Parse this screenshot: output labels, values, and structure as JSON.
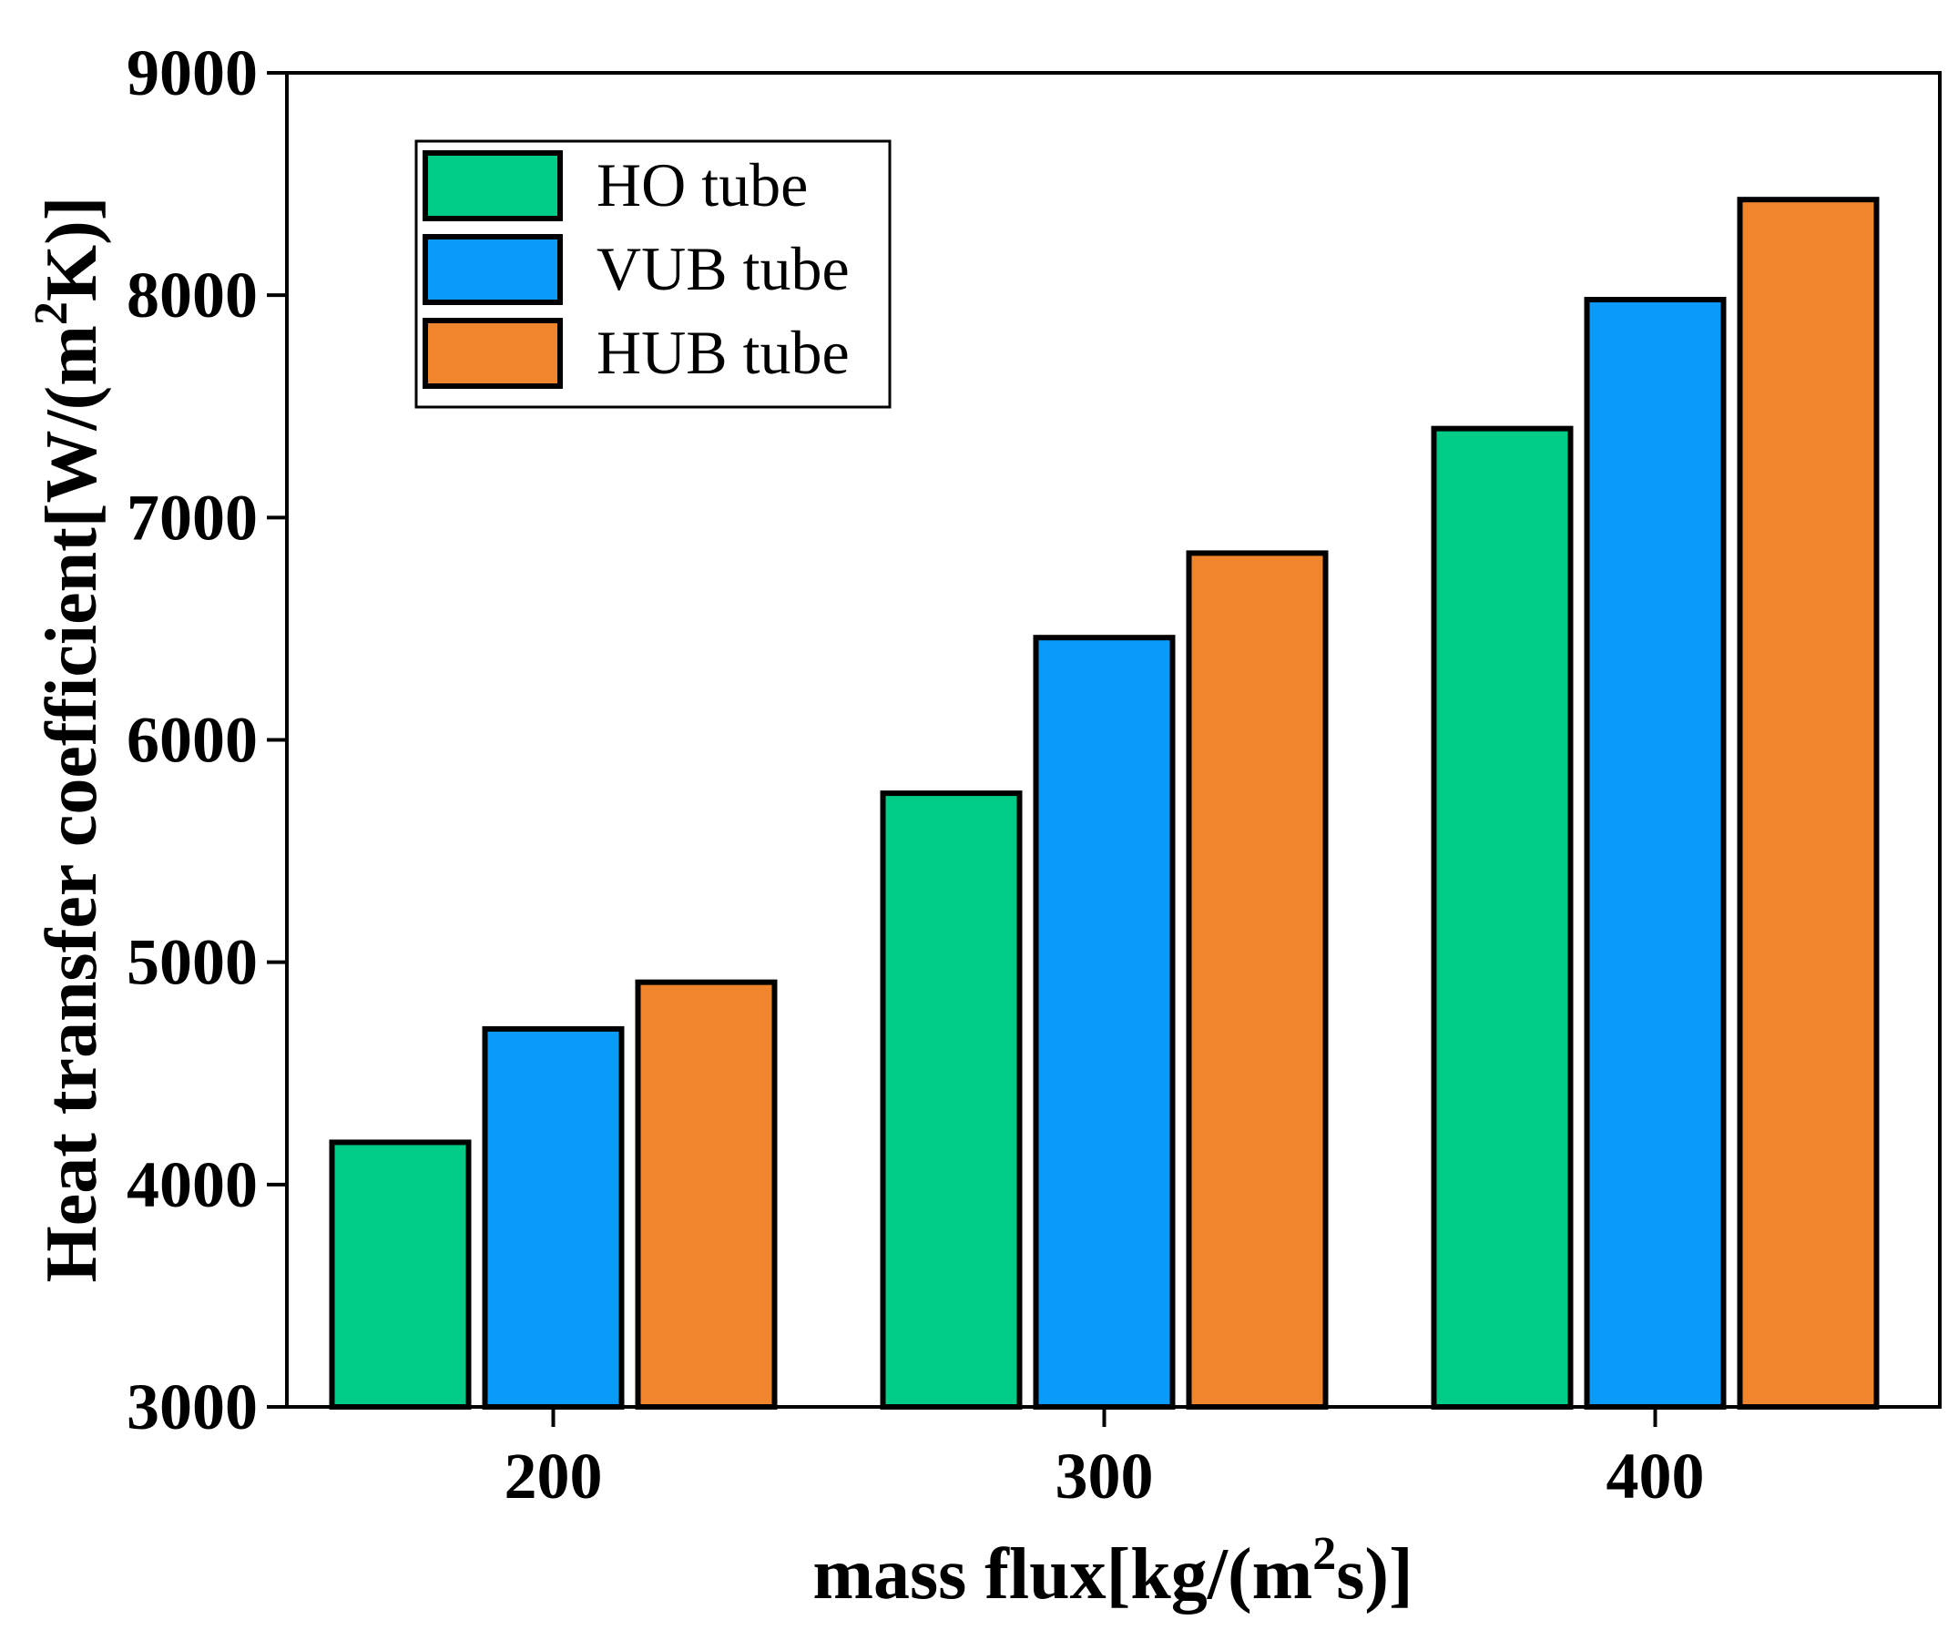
{
  "chart_data": {
    "type": "bar",
    "categories": [
      "200",
      "300",
      "400"
    ],
    "series": [
      {
        "name": "HO tube",
        "color": "#00cc88",
        "values": [
          4190,
          5760,
          7400
        ]
      },
      {
        "name": "VUB tube",
        "color": "#0a9bf8",
        "values": [
          4700,
          6460,
          7980
        ]
      },
      {
        "name": "HUB tube",
        "color": "#ef852c",
        "values": [
          4910,
          6840,
          8430
        ]
      }
    ],
    "ylim": [
      3000,
      9000
    ],
    "yticks": [
      3000,
      4000,
      5000,
      6000,
      7000,
      8000,
      9000
    ],
    "xlabel": {
      "main": "mass flux[kg/(m",
      "sup": "2",
      "tail": "s)]"
    },
    "ylabel": {
      "main": "Heat transfer coefficient[W/(m",
      "sup": "2",
      "tail": "K)]"
    },
    "legend_position": "top-left",
    "grid": false
  }
}
